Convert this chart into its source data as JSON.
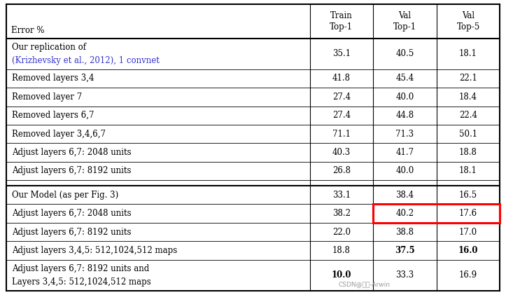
{
  "columns": [
    "Error %",
    "Train\nTop-1",
    "Val\nTop-1",
    "Val\nTop-5"
  ],
  "section1": [
    [
      "Our replication of",
      "(Krizhevsky et al., 2012), 1 convnet",
      "35.1",
      "40.5",
      "18.1"
    ],
    [
      "Removed layers 3,4",
      "",
      "41.8",
      "45.4",
      "22.1"
    ],
    [
      "Removed layer 7",
      "",
      "27.4",
      "40.0",
      "18.4"
    ],
    [
      "Removed layers 6,7",
      "",
      "27.4",
      "44.8",
      "22.4"
    ],
    [
      "Removed layer 3,4,6,7",
      "",
      "71.1",
      "71.3",
      "50.1"
    ],
    [
      "Adjust layers 6,7: 2048 units",
      "",
      "40.3",
      "41.7",
      "18.8"
    ],
    [
      "Adjust layers 6,7: 8192 units",
      "",
      "26.8",
      "40.0",
      "18.1"
    ]
  ],
  "section2": [
    [
      "Our Model (as per Fig. 3)",
      "",
      "33.1",
      "38.4",
      "16.5",
      [
        false,
        false,
        false,
        false
      ]
    ],
    [
      "Adjust layers 6,7: 2048 units",
      "",
      "38.2",
      "40.2",
      "17.6",
      [
        false,
        false,
        false,
        false
      ]
    ],
    [
      "Adjust layers 6,7: 8192 units",
      "",
      "22.0",
      "38.8",
      "17.0",
      [
        false,
        false,
        false,
        false
      ]
    ],
    [
      "Adjust layers 3,4,5: 512,1024,512 maps",
      "",
      "18.8",
      "37.5",
      "16.0",
      [
        false,
        false,
        true,
        true
      ]
    ],
    [
      "Adjust layers 6,7: 8192 units and",
      "Layers 3,4,5: 512,1024,512 maps",
      "10.0",
      "33.3",
      "16.9",
      [
        true,
        false,
        false,
        false
      ]
    ]
  ],
  "highlight_row_s2": 1,
  "highlight_color": "#ff0000",
  "krizhevsky_color": "#3333cc",
  "text_color": "#000000",
  "bg_color": "#ffffff",
  "watermark": "CSDN@图灵-Arwin",
  "figw": 7.23,
  "figh": 4.21,
  "dpi": 100
}
